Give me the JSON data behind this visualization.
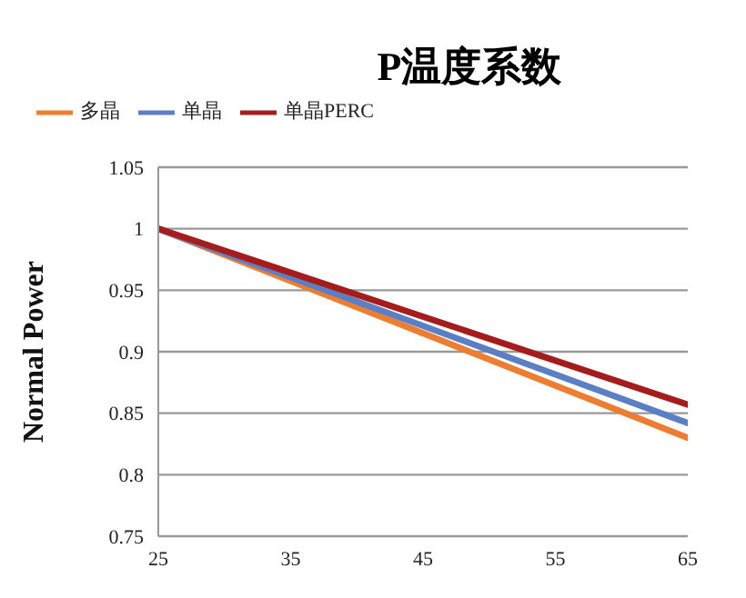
{
  "chart_data": {
    "type": "line",
    "title": "P温度系数",
    "ylabel": "Normal Power",
    "x": [
      25,
      65
    ],
    "series": [
      {
        "name": "多晶",
        "color": "#ed7d31",
        "values": [
          1,
          0.83
        ]
      },
      {
        "name": "单晶",
        "color": "#5b7fc4",
        "values": [
          1,
          0.842
        ]
      },
      {
        "name": "单晶PERC",
        "color": "#a51c1c",
        "values": [
          1,
          0.857
        ]
      }
    ],
    "xlim": [
      25,
      65
    ],
    "xticks": [
      25,
      35,
      45,
      55,
      65
    ],
    "ylim": [
      0.75,
      1.05
    ],
    "yticks": [
      0.75,
      0.8,
      0.85,
      0.9,
      0.95,
      1,
      1.05
    ],
    "grid": "y",
    "legend": "top left",
    "marker": "none",
    "line_style": "solid"
  }
}
